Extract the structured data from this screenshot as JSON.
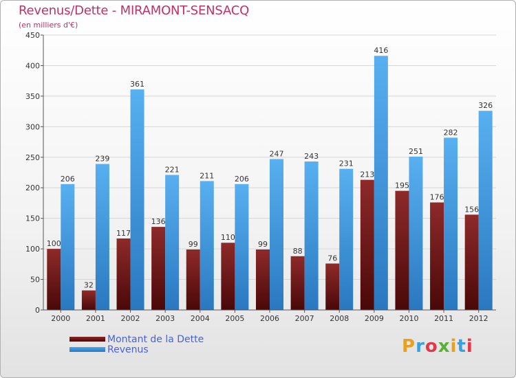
{
  "title": "Revenus/Dette - MIRAMONT-SENSACQ",
  "subtitle": "(en milliers d'€)",
  "logo": {
    "text": "Proxiti",
    "letter_colors": [
      "#e8a020",
      "#3aa0e0",
      "#e03a4a",
      "#5ab030",
      "#e8a020",
      "#3aa0e0",
      "#e03a4a"
    ]
  },
  "colors": {
    "dette": "#8b2525",
    "revenus": "#4aa3e8"
  },
  "chart_data": {
    "type": "bar",
    "title": "Revenus/Dette - MIRAMONT-SENSACQ",
    "subtitle": "(en milliers d'€)",
    "categories": [
      "2000",
      "2001",
      "2002",
      "2003",
      "2004",
      "2005",
      "2006",
      "2007",
      "2008",
      "2009",
      "2010",
      "2011",
      "2012"
    ],
    "series": [
      {
        "name": "Montant de la Dette",
        "values": [
          100,
          32,
          117,
          136,
          99,
          110,
          99,
          88,
          76,
          213,
          195,
          176,
          156
        ]
      },
      {
        "name": "Revenus",
        "values": [
          206,
          239,
          361,
          221,
          211,
          206,
          247,
          243,
          231,
          416,
          251,
          282,
          326
        ]
      }
    ],
    "ylim": [
      0,
      450
    ],
    "yticks": [
      0,
      50,
      100,
      150,
      200,
      250,
      300,
      350,
      400,
      450
    ],
    "grid": true,
    "legend_position": "bottom-left"
  }
}
